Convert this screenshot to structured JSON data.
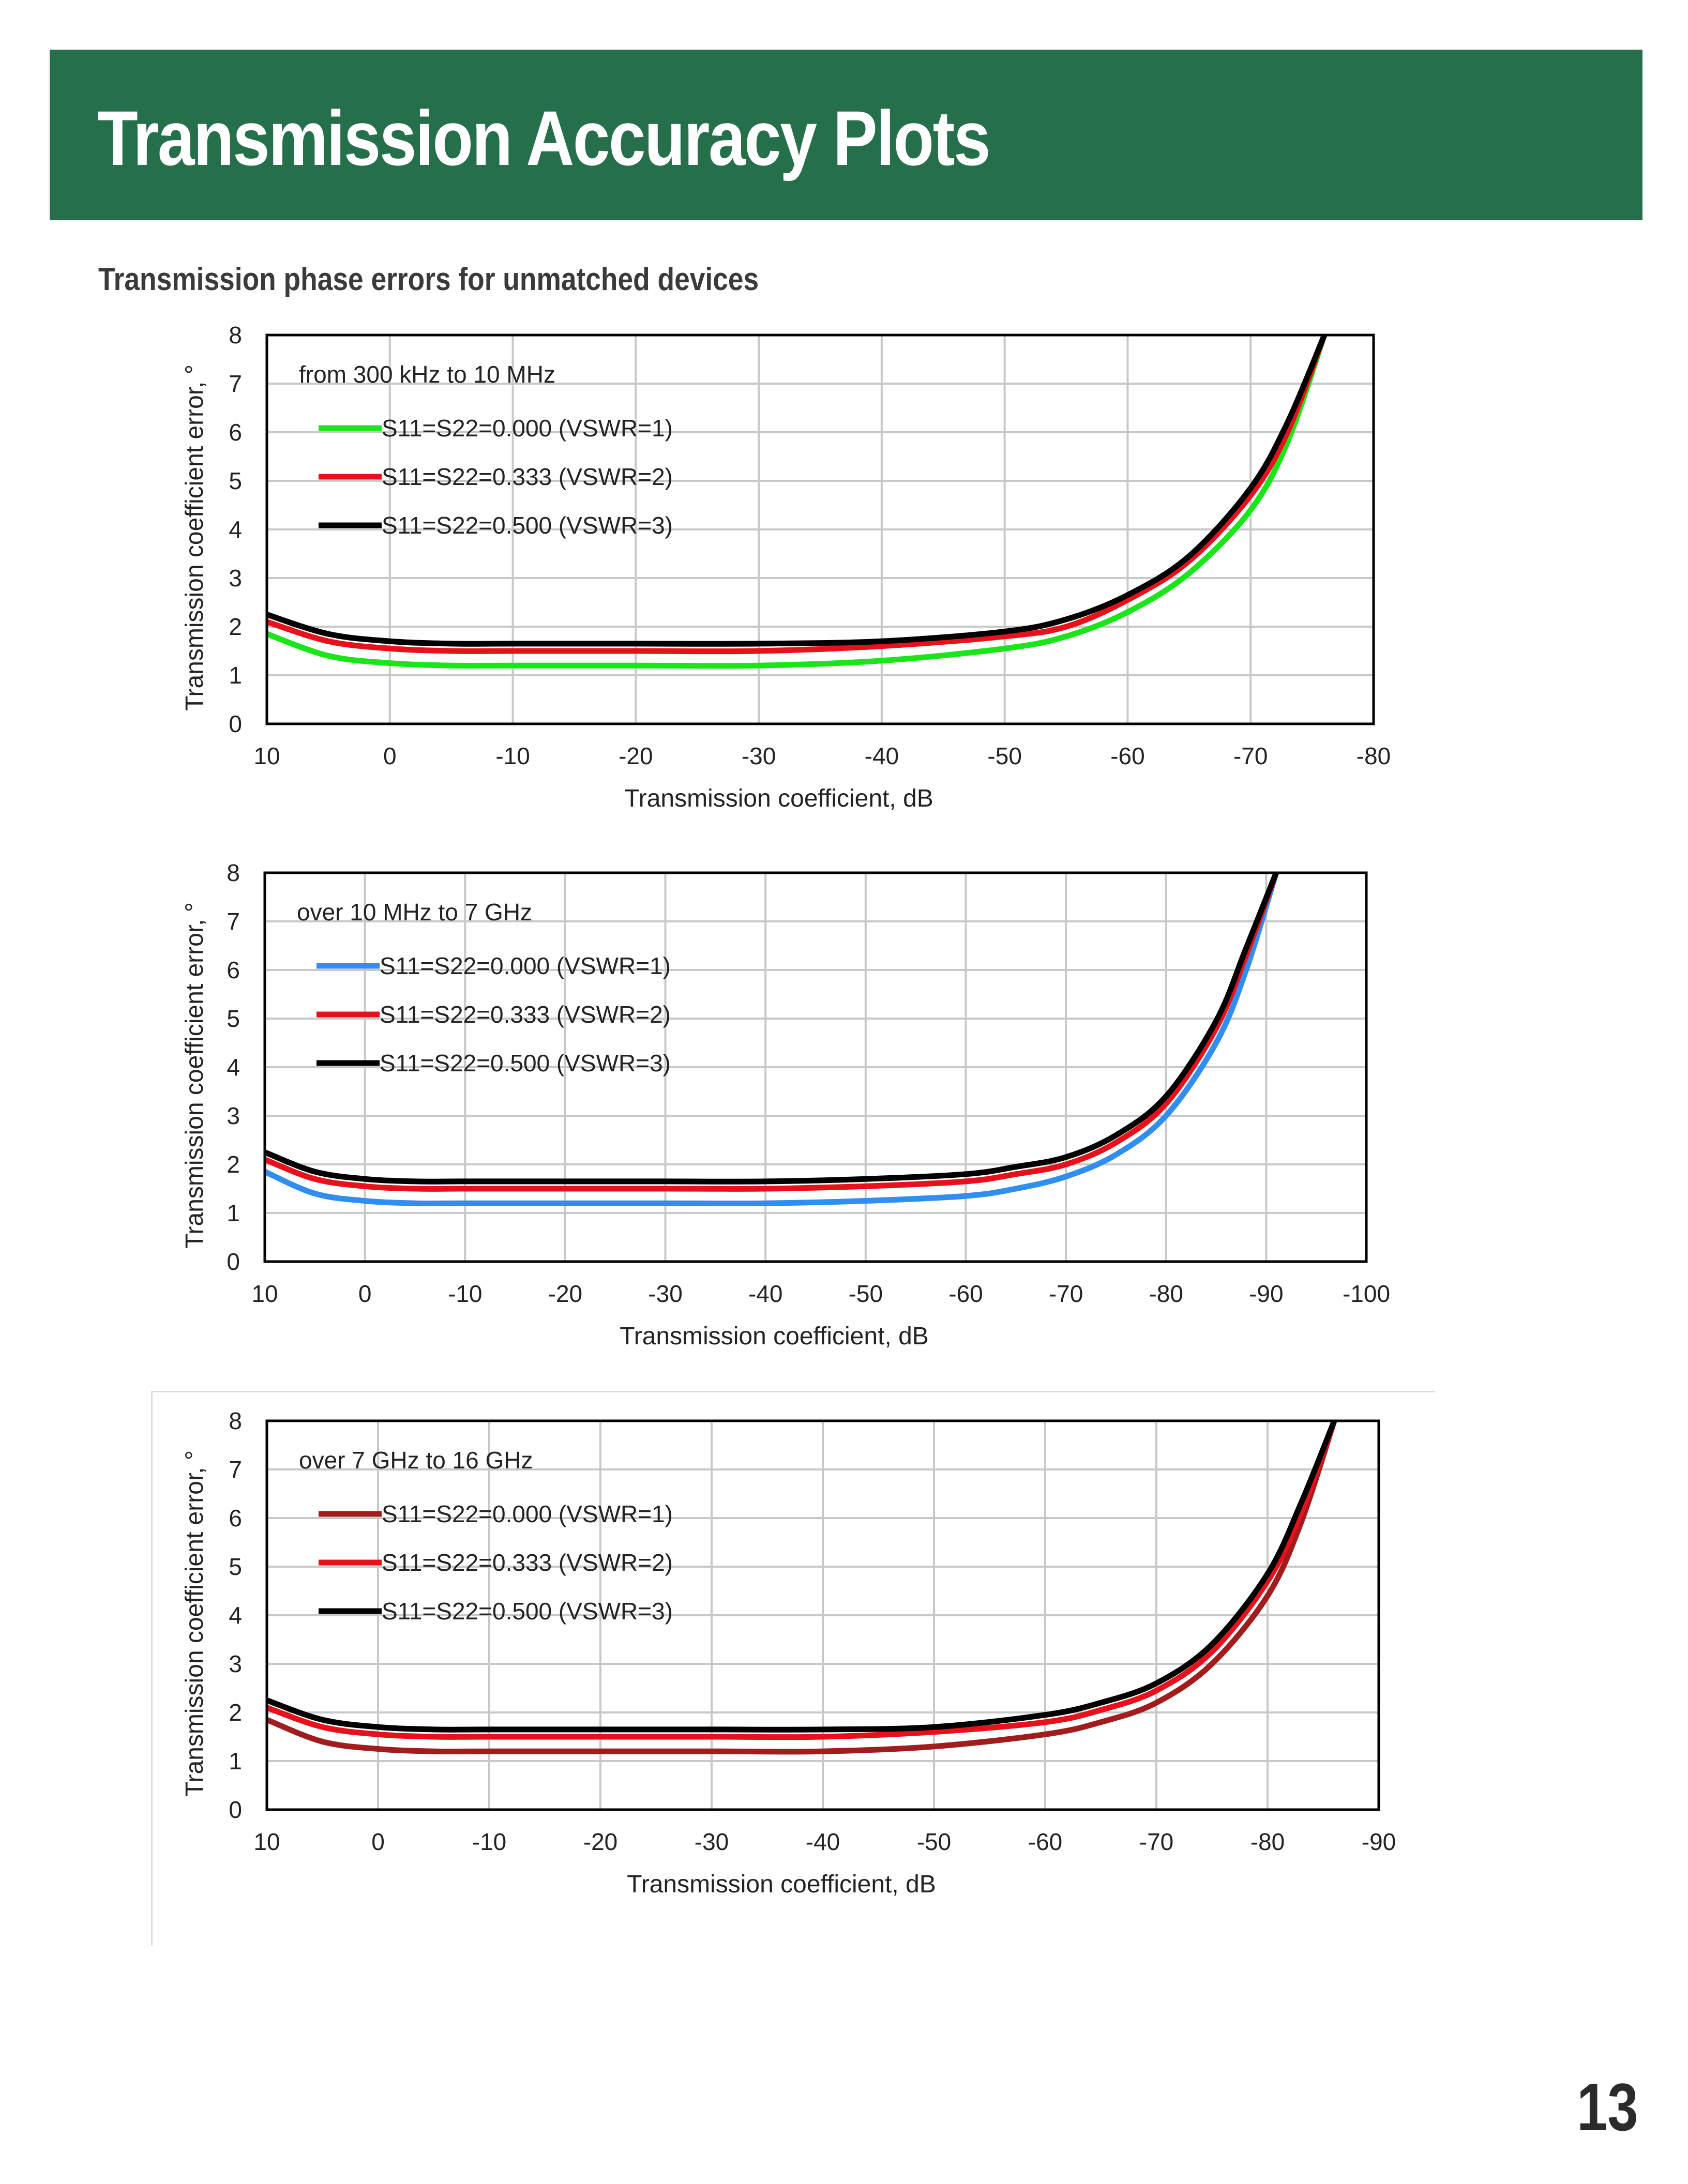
{
  "header": {
    "title": "Transmission Accuracy Plots",
    "subtitle": "Transmission phase errors for unmatched devices",
    "page_number": "13",
    "banner_color": "#256f4a"
  },
  "chart_data": [
    {
      "type": "line",
      "annotation": "from 300 kHz to 10 MHz",
      "xlabel": "Transmission coefficient, dB",
      "ylabel": "Transmission coefficient error, °",
      "xlim": [
        10,
        -80
      ],
      "ylim": [
        0,
        8
      ],
      "xticks": [
        "10",
        "0",
        "-10",
        "-20",
        "-30",
        "-40",
        "-50",
        "-60",
        "-70",
        "-80"
      ],
      "yticks": [
        "0",
        "1",
        "2",
        "3",
        "4",
        "5",
        "6",
        "7",
        "8"
      ],
      "grid": true,
      "legend_position": "top-left",
      "x": [
        10,
        5,
        0,
        -5,
        -10,
        -20,
        -30,
        -40,
        -50,
        -55,
        -60,
        -65,
        -70,
        -73,
        -76
      ],
      "series": [
        {
          "name": "S11=S22=0.000 (VSWR=1)",
          "color": "#19e619",
          "values": [
            1.85,
            1.4,
            1.25,
            1.2,
            1.2,
            1.2,
            1.2,
            1.3,
            1.55,
            1.8,
            2.3,
            3.1,
            4.4,
            5.8,
            8.0
          ]
        },
        {
          "name": "S11=S22=0.333 (VSWR=2)",
          "color": "#e8101a",
          "values": [
            2.1,
            1.7,
            1.55,
            1.5,
            1.5,
            1.5,
            1.5,
            1.6,
            1.8,
            2.0,
            2.55,
            3.35,
            4.7,
            6.0,
            8.0
          ]
        },
        {
          "name": "S11=S22=0.500 (VSWR=3)",
          "color": "#000000",
          "values": [
            2.25,
            1.85,
            1.7,
            1.65,
            1.65,
            1.65,
            1.65,
            1.7,
            1.9,
            2.15,
            2.65,
            3.45,
            4.85,
            6.2,
            8.0
          ]
        }
      ]
    },
    {
      "type": "line",
      "annotation": "over 10 MHz to 7 GHz",
      "xlabel": "Transmission coefficient, dB",
      "ylabel": "Transmission coefficient error, °",
      "xlim": [
        10,
        -100
      ],
      "ylim": [
        0,
        8
      ],
      "xticks": [
        "10",
        "0",
        "-10",
        "-20",
        "-30",
        "-40",
        "-50",
        "-60",
        "-70",
        "-80",
        "-90",
        "-100"
      ],
      "yticks": [
        "0",
        "1",
        "2",
        "3",
        "4",
        "5",
        "6",
        "7",
        "8"
      ],
      "grid": true,
      "legend_position": "top-left",
      "x": [
        10,
        5,
        0,
        -5,
        -10,
        -20,
        -30,
        -40,
        -50,
        -60,
        -65,
        -70,
        -75,
        -80,
        -85,
        -88,
        -91
      ],
      "series": [
        {
          "name": "S11=S22=0.000 (VSWR=1)",
          "color": "#2f8ef0",
          "values": [
            1.85,
            1.4,
            1.25,
            1.2,
            1.2,
            1.2,
            1.2,
            1.2,
            1.25,
            1.35,
            1.5,
            1.75,
            2.2,
            3.0,
            4.5,
            6.0,
            8.0
          ]
        },
        {
          "name": "S11=S22=0.333 (VSWR=2)",
          "color": "#e8101a",
          "values": [
            2.1,
            1.7,
            1.55,
            1.5,
            1.5,
            1.5,
            1.5,
            1.5,
            1.55,
            1.65,
            1.8,
            2.0,
            2.45,
            3.25,
            4.8,
            6.3,
            8.0
          ]
        },
        {
          "name": "S11=S22=0.500 (VSWR=3)",
          "color": "#000000",
          "values": [
            2.25,
            1.85,
            1.7,
            1.65,
            1.65,
            1.65,
            1.65,
            1.65,
            1.7,
            1.8,
            1.95,
            2.15,
            2.6,
            3.4,
            4.95,
            6.45,
            8.0
          ]
        }
      ]
    },
    {
      "type": "line",
      "annotation": "over 7 GHz to 16 GHz",
      "xlabel": "Transmission coefficient, dB",
      "ylabel": "Transmission coefficient error, °",
      "xlim": [
        10,
        -90
      ],
      "ylim": [
        0,
        8
      ],
      "xticks": [
        "10",
        "0",
        "-10",
        "-20",
        "-30",
        "-40",
        "-50",
        "-60",
        "-70",
        "-80",
        "-90"
      ],
      "yticks": [
        "0",
        "1",
        "2",
        "3",
        "4",
        "5",
        "6",
        "7",
        "8"
      ],
      "grid": true,
      "legend_position": "top-left",
      "x": [
        10,
        5,
        0,
        -5,
        -10,
        -20,
        -30,
        -40,
        -50,
        -60,
        -65,
        -70,
        -75,
        -80,
        -83,
        -86
      ],
      "series": [
        {
          "name": "S11=S22=0.000 (VSWR=1)",
          "color": "#a11d1d",
          "values": [
            1.85,
            1.4,
            1.25,
            1.2,
            1.2,
            1.2,
            1.2,
            1.2,
            1.3,
            1.55,
            1.8,
            2.2,
            3.0,
            4.4,
            5.9,
            8.0
          ]
        },
        {
          "name": "S11=S22=0.333 (VSWR=2)",
          "color": "#e8101a",
          "values": [
            2.1,
            1.7,
            1.55,
            1.5,
            1.5,
            1.5,
            1.5,
            1.5,
            1.6,
            1.8,
            2.05,
            2.45,
            3.25,
            4.7,
            6.1,
            8.0
          ]
        },
        {
          "name": "S11=S22=0.500 (VSWR=3)",
          "color": "#000000",
          "values": [
            2.25,
            1.85,
            1.7,
            1.65,
            1.65,
            1.65,
            1.65,
            1.65,
            1.7,
            1.95,
            2.2,
            2.6,
            3.4,
            4.85,
            6.3,
            8.0
          ]
        }
      ]
    }
  ]
}
